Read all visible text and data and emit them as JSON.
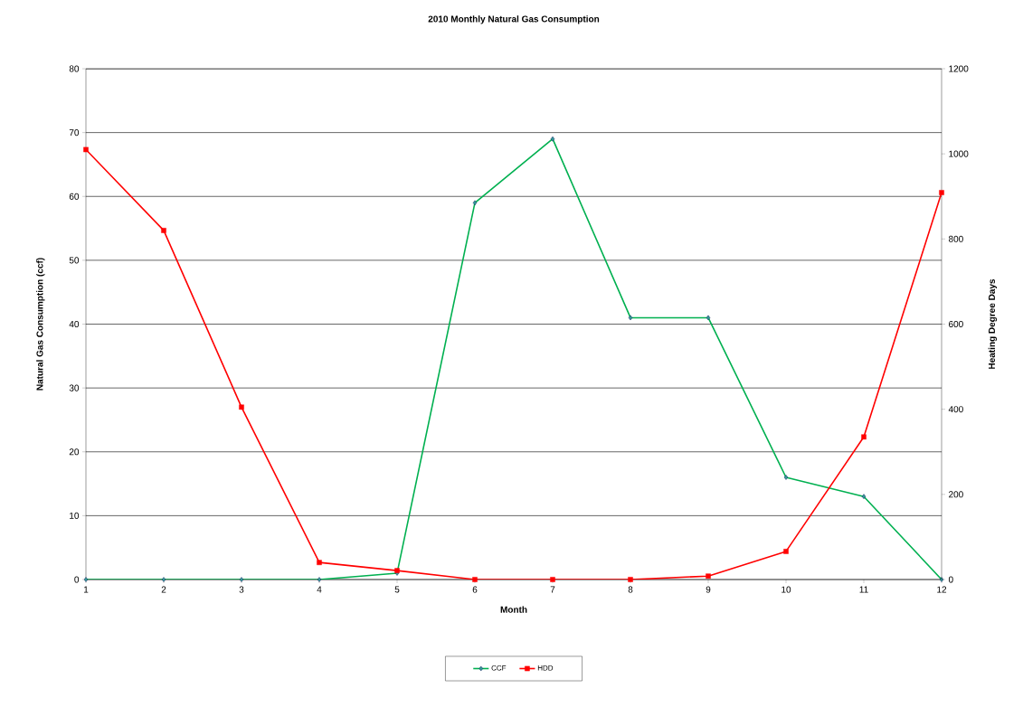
{
  "chart_data": {
    "type": "line",
    "title": "2010 Monthly Natural Gas Consumption",
    "xlabel": "Month",
    "ylabel": "Natural Gas Consumption (ccf)",
    "y2label": "Heating Degree Days",
    "x": [
      1,
      2,
      3,
      4,
      5,
      6,
      7,
      8,
      9,
      10,
      11,
      12
    ],
    "series": [
      {
        "name": "CCF",
        "color": "#00b050",
        "marker": "diamond",
        "values": [
          0,
          0,
          0,
          0,
          1,
          59,
          69,
          41,
          41,
          16,
          13,
          0
        ]
      },
      {
        "name": "HDD",
        "color": "#ff0000",
        "marker": "square",
        "axis": "y2",
        "values": [
          1010,
          820,
          405,
          40,
          21,
          0,
          0,
          0,
          8,
          66,
          335,
          909
        ]
      }
    ],
    "xlim": [
      1,
      12
    ],
    "xticks": [
      1,
      2,
      3,
      4,
      5,
      6,
      7,
      8,
      9,
      10,
      11,
      12
    ],
    "ylim": [
      0,
      80
    ],
    "yticks": [
      0,
      10,
      20,
      30,
      40,
      50,
      60,
      70,
      80
    ],
    "y2lim": [
      0,
      1200
    ],
    "y2ticks": [
      0,
      200,
      400,
      600,
      800,
      1000,
      1200
    ],
    "grid": "y",
    "legend": "bottom"
  }
}
